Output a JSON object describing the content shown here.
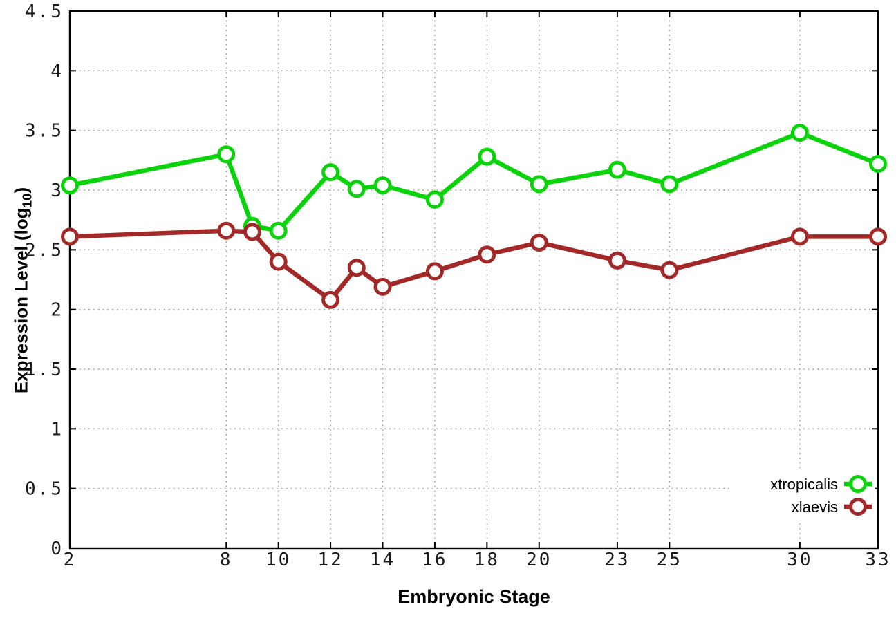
{
  "chart_data": {
    "type": "line",
    "title": "",
    "xlabel": "Embryonic Stage",
    "ylabel": "Expression Level (log10)",
    "ylabel_parts": {
      "prefix": "Expression Level (log",
      "sub": "10",
      "suffix": ")"
    },
    "x": [
      2,
      8,
      9,
      10,
      12,
      13,
      14,
      16,
      18,
      20,
      23,
      25,
      30,
      33
    ],
    "series": [
      {
        "name": "xtropicalis",
        "color": "#0bd30b",
        "values": [
          3.04,
          3.3,
          2.7,
          2.66,
          3.15,
          3.01,
          3.04,
          2.92,
          3.28,
          3.05,
          3.17,
          3.05,
          3.48,
          3.22
        ]
      },
      {
        "name": "xlaevis",
        "color": "#a32929",
        "values": [
          2.61,
          2.66,
          2.65,
          2.4,
          2.08,
          2.35,
          2.19,
          2.32,
          2.46,
          2.56,
          2.41,
          2.33,
          2.61,
          2.61
        ]
      }
    ],
    "xlim": [
      2,
      33
    ],
    "ylim": [
      0,
      4.5
    ],
    "xticks": [
      2,
      8,
      10,
      12,
      14,
      16,
      18,
      20,
      23,
      25,
      30,
      33
    ],
    "yticks": [
      0,
      0.5,
      1,
      1.5,
      2,
      2.5,
      3,
      3.5,
      4,
      4.5
    ],
    "ytick_labels": [
      "0",
      "0.5",
      "1",
      "1.5",
      "2",
      "2.5",
      "3",
      "3.5",
      "4",
      "4.5"
    ],
    "grid": true,
    "legend_position": "inside-bottom-right",
    "marker": "open-circle",
    "background": "#ffffff",
    "grid_color": "#9b9b9b",
    "axis_color": "#000000",
    "tick_label_color": "#1b1b1b"
  }
}
